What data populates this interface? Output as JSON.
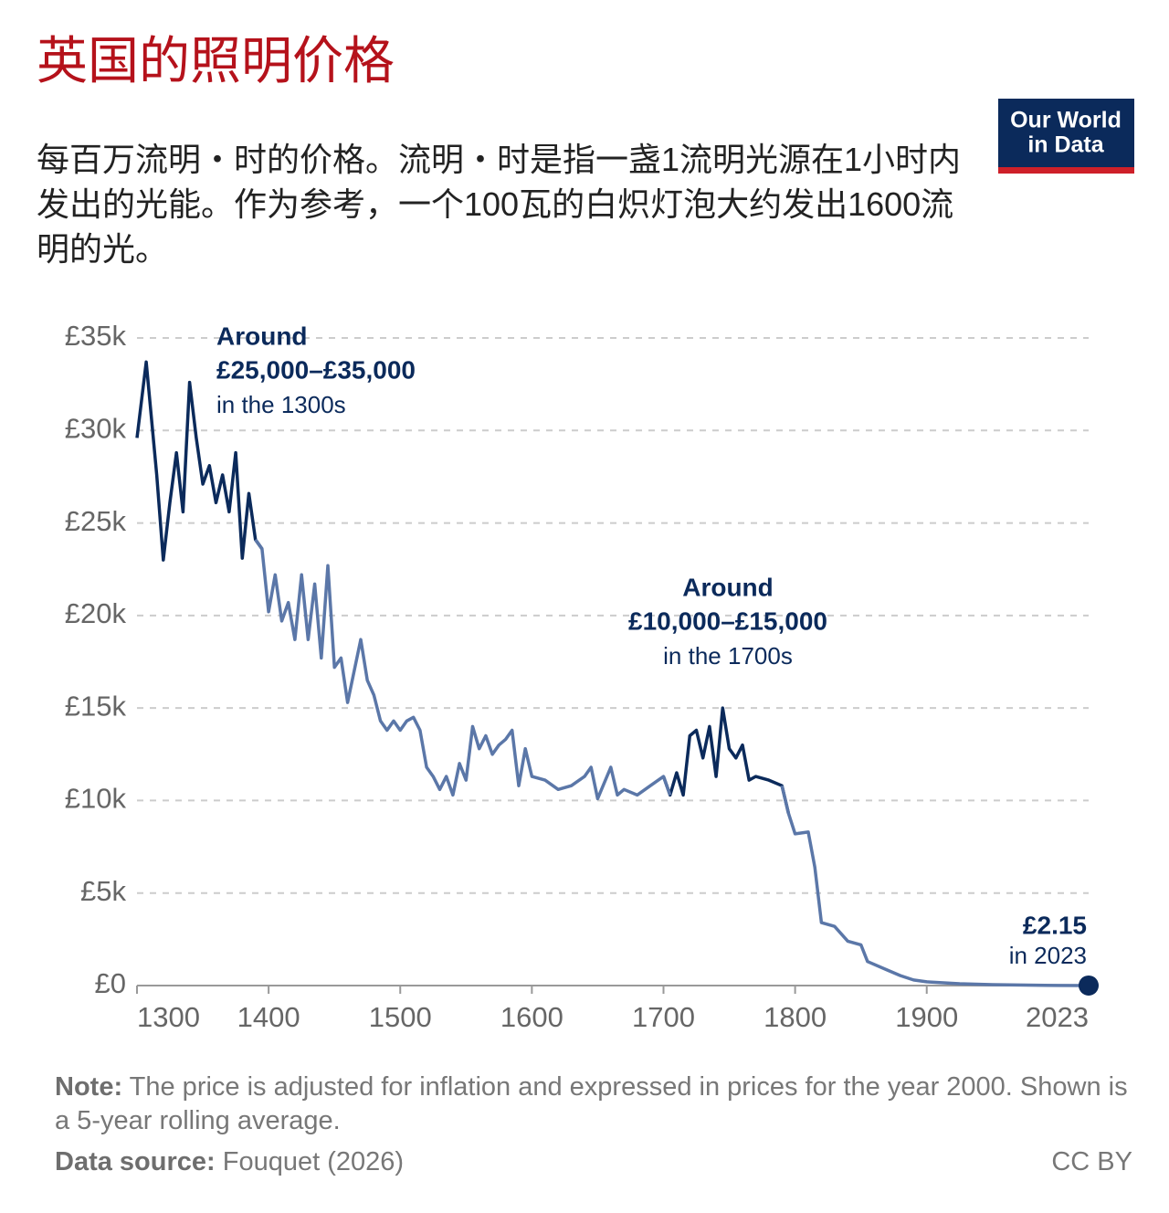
{
  "chart_data": {
    "type": "line",
    "title": "英国的照明价格",
    "subtitle": "每百万流明・时的价格。流明・时是指一盏1流明光源在1小时内发出的光能。作为参考，一个100瓦的白炽灯泡大约发出1600流明的光。",
    "logo": [
      "Our World",
      "in Data"
    ],
    "x": [
      1300,
      1307,
      1315,
      1320,
      1325,
      1330,
      1335,
      1340,
      1345,
      1350,
      1355,
      1360,
      1365,
      1370,
      1375,
      1380,
      1385,
      1390,
      1395,
      1400,
      1405,
      1410,
      1415,
      1420,
      1425,
      1430,
      1435,
      1440,
      1445,
      1450,
      1455,
      1460,
      1465,
      1470,
      1475,
      1480,
      1485,
      1490,
      1495,
      1500,
      1505,
      1510,
      1515,
      1520,
      1525,
      1530,
      1535,
      1540,
      1545,
      1550,
      1555,
      1560,
      1565,
      1570,
      1575,
      1580,
      1585,
      1590,
      1595,
      1600,
      1610,
      1620,
      1630,
      1640,
      1645,
      1650,
      1660,
      1665,
      1670,
      1680,
      1690,
      1700,
      1705,
      1710,
      1715,
      1720,
      1725,
      1730,
      1735,
      1740,
      1745,
      1750,
      1755,
      1760,
      1765,
      1770,
      1780,
      1790,
      1795,
      1800,
      1810,
      1815,
      1820,
      1830,
      1840,
      1850,
      1855,
      1870,
      1880,
      1890,
      1900,
      1925,
      1950,
      2000,
      2023
    ],
    "series": [
      {
        "color": "#0b2a5b",
        "values": [
          29600,
          33700,
          27600,
          23000,
          26100,
          28800,
          25600,
          32600,
          29600,
          27100,
          28100,
          26100,
          27600,
          25600,
          28800,
          23100,
          26600,
          24100,
          23600,
          null,
          null,
          null,
          null,
          null,
          null,
          null,
          null,
          null,
          null,
          null,
          null,
          null,
          null,
          null,
          null,
          null,
          null,
          null,
          null,
          null,
          null,
          null,
          null,
          null,
          null,
          null,
          null,
          null,
          null,
          null,
          null,
          null,
          null,
          null,
          null,
          null,
          null,
          null,
          null,
          null,
          null,
          null,
          null,
          null,
          null,
          null,
          null,
          null,
          null,
          null,
          null,
          11300,
          10300,
          11500,
          10300,
          13500,
          13800,
          12300,
          14000,
          11300,
          15000,
          12800,
          12300,
          13000,
          11100,
          11300,
          11100,
          10800,
          9300,
          null,
          null,
          null,
          null,
          null,
          null,
          null,
          null,
          null,
          null,
          null,
          null,
          null,
          null,
          null,
          null
        ]
      },
      {
        "color": "#5b77a8",
        "values": [
          null,
          null,
          null,
          null,
          null,
          null,
          null,
          null,
          null,
          null,
          null,
          null,
          null,
          null,
          null,
          null,
          null,
          24100,
          23600,
          20200,
          22200,
          19700,
          20700,
          18700,
          22200,
          18700,
          21700,
          17700,
          22700,
          17200,
          17700,
          15300,
          17000,
          18700,
          16500,
          15700,
          14300,
          13800,
          14300,
          13800,
          14300,
          14500,
          13800,
          11800,
          11300,
          10600,
          11300,
          10300,
          12000,
          11100,
          14000,
          12800,
          13500,
          12500,
          13000,
          13300,
          13800,
          10800,
          12800,
          11300,
          11100,
          10600,
          10800,
          11300,
          11800,
          10100,
          11800,
          10300,
          10600,
          10300,
          10800,
          11300,
          10300,
          null,
          null,
          null,
          null,
          null,
          null,
          null,
          null,
          null,
          null,
          null,
          null,
          null,
          null,
          10800,
          9300,
          8200,
          8300,
          6400,
          3400,
          3200,
          2400,
          2200,
          1300,
          840,
          540,
          300,
          200,
          100,
          50,
          5,
          2.15
        ]
      }
    ],
    "xlim": [
      1300,
      2023
    ],
    "xticks": [
      1300,
      1400,
      1500,
      1600,
      1700,
      1800,
      1900,
      2023
    ],
    "ylim": [
      0,
      35000
    ],
    "yticks": [
      {
        "value": 0,
        "label": "£0"
      },
      {
        "value": 5000,
        "label": "£5k"
      },
      {
        "value": 10000,
        "label": "£10k"
      },
      {
        "value": 15000,
        "label": "£15k"
      },
      {
        "value": 20000,
        "label": "£20k"
      },
      {
        "value": 25000,
        "label": "£25k"
      },
      {
        "value": 30000,
        "label": "£30k"
      },
      {
        "value": 35000,
        "label": "£35k"
      }
    ],
    "grid": true,
    "annotations": [
      [
        "Around",
        "£25,000–£35,000",
        "in the 1300s"
      ],
      [
        "Around",
        "£10,000–£15,000",
        "in the 1700s"
      ],
      [
        "£2.15",
        "in 2023"
      ]
    ],
    "note_label": "Note:",
    "note": "The price is adjusted for inflation and expressed in prices for the year 2000. Shown is a 5-year rolling average.",
    "source_label": "Data source:",
    "source": "Fouquet (2026)",
    "license": "CC BY"
  }
}
